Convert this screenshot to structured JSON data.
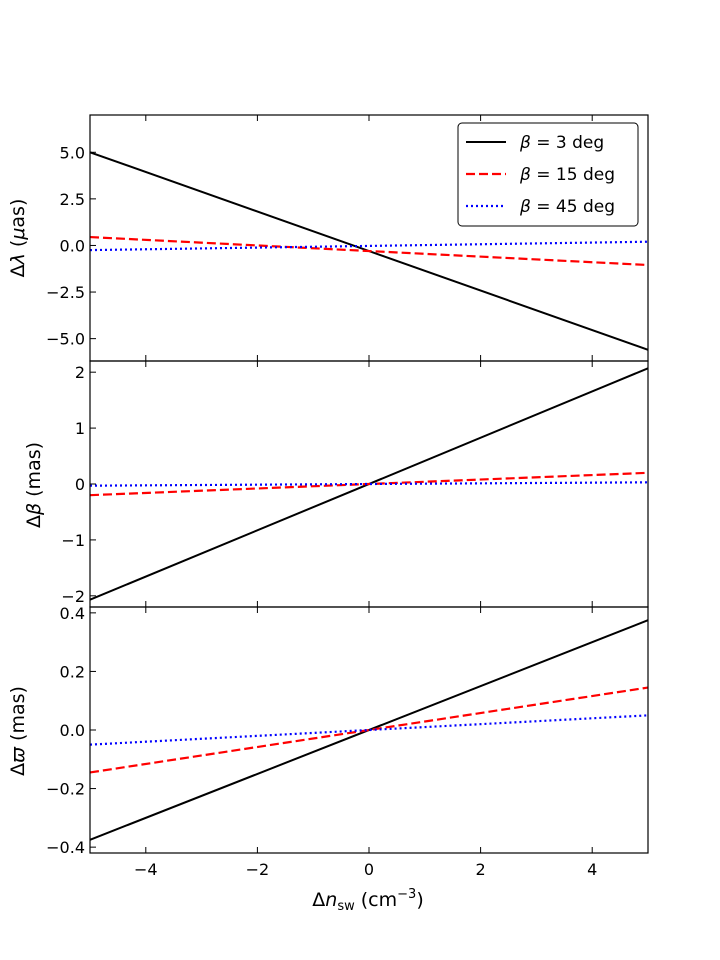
{
  "chart_data": {
    "type": "line",
    "xlabel": "Δn_sw (cm⁻³)",
    "xlabel_parts": {
      "prefix": "Δ",
      "main": "n",
      "sub": "sw",
      "unit_open": " (cm",
      "sup": "−3",
      "unit_close": ")"
    },
    "xlim": [
      -5,
      5
    ],
    "xticks": [
      -4,
      -2,
      0,
      2,
      4
    ],
    "xtick_labels": [
      "−4",
      "−2",
      "0",
      "2",
      "4"
    ],
    "legend": {
      "placement": "top-right",
      "entries": [
        {
          "key": "s3",
          "label": "β = 3 deg",
          "greek": "β",
          "rest": " = 3 deg",
          "color": "#000000",
          "style": "solid"
        },
        {
          "key": "s15",
          "label": "β = 15 deg",
          "greek": "β",
          "rest": " = 15 deg",
          "color": "#ff0000",
          "style": "dashed"
        },
        {
          "key": "s45",
          "label": "β = 45 deg",
          "greek": "β",
          "rest": " = 45 deg",
          "color": "#0000ff",
          "style": "dotted"
        }
      ]
    },
    "panels": [
      {
        "id": "dlambda",
        "ylabel": "Δλ (μas)",
        "ylabel_parts": {
          "pre": "Δ",
          "greek": "λ",
          "open": " (",
          "greek2": "μ",
          "rest": "as)"
        },
        "ylim": [
          -6.2,
          7.0
        ],
        "yticks": [
          -5.0,
          -2.5,
          0.0,
          2.5,
          5.0
        ],
        "ytick_labels": [
          "−5.0",
          "−2.5",
          "0.0",
          "2.5",
          "5.0"
        ],
        "series": [
          {
            "key": "s3",
            "x": [
              -5,
              5
            ],
            "y": [
              5.0,
              -5.6
            ]
          },
          {
            "key": "s15",
            "x": [
              -5,
              5
            ],
            "y": [
              0.45,
              -1.05
            ]
          },
          {
            "key": "s45",
            "x": [
              -5,
              5
            ],
            "y": [
              -0.25,
              0.2
            ]
          }
        ]
      },
      {
        "id": "dbeta",
        "ylabel": "Δβ (mas)",
        "ylabel_parts": {
          "pre": "Δ",
          "greek": "β",
          "open": " (",
          "greek2": "",
          "rest": "mas)"
        },
        "ylim": [
          -2.2,
          2.2
        ],
        "yticks": [
          -2,
          -1,
          0,
          1,
          2
        ],
        "ytick_labels": [
          "−2",
          "−1",
          "0",
          "1",
          "2"
        ],
        "series": [
          {
            "key": "s3",
            "x": [
              -5,
              5
            ],
            "y": [
              -2.07,
              2.07
            ]
          },
          {
            "key": "s15",
            "x": [
              -5,
              5
            ],
            "y": [
              -0.2,
              0.2
            ]
          },
          {
            "key": "s45",
            "x": [
              -5,
              5
            ],
            "y": [
              -0.03,
              0.03
            ]
          }
        ]
      },
      {
        "id": "dvarpi",
        "ylabel": "Δϖ (mas)",
        "ylabel_parts": {
          "pre": "Δ",
          "greek": "ϖ",
          "open": " (",
          "greek2": "",
          "rest": "mas)"
        },
        "ylim": [
          -0.42,
          0.42
        ],
        "yticks": [
          -0.4,
          -0.2,
          0.0,
          0.2,
          0.4
        ],
        "ytick_labels": [
          "−0.4",
          "−0.2",
          "0.0",
          "0.2",
          "0.4"
        ],
        "series": [
          {
            "key": "s3",
            "x": [
              -5,
              5
            ],
            "y": [
              -0.375,
              0.375
            ]
          },
          {
            "key": "s15",
            "x": [
              -5,
              5
            ],
            "y": [
              -0.145,
              0.145
            ]
          },
          {
            "key": "s45",
            "x": [
              -5,
              5
            ],
            "y": [
              -0.05,
              0.05
            ]
          }
        ]
      }
    ]
  }
}
